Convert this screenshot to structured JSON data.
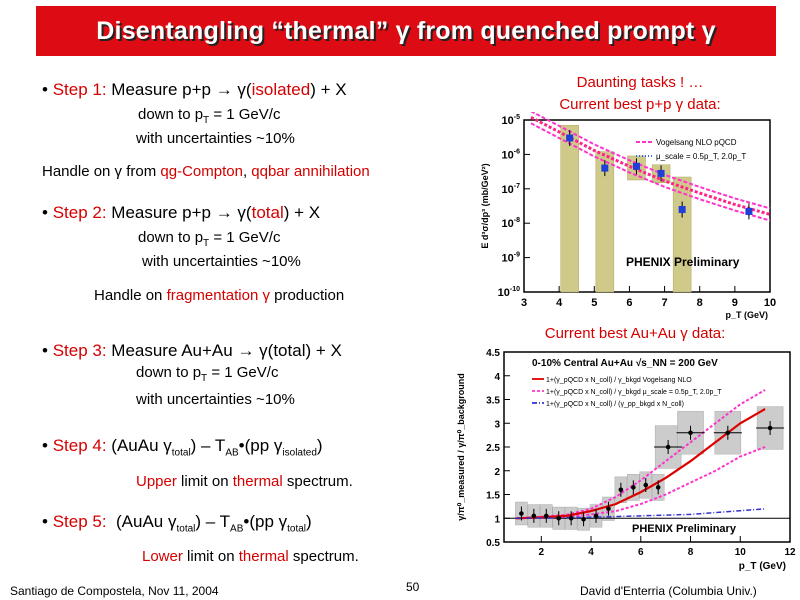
{
  "title": "Disentangling “thermal” γ from quenched prompt γ",
  "steps": [
    {
      "label": "Step 1:",
      "text_black": " Measure p+p → γ(",
      "text_red": "isolated",
      "text_end": ") + X",
      "line1": "down to p",
      "line1_sub": "T",
      "line1_end": " = 1 GeV/c",
      "line2": "with uncertainties ~10%"
    },
    {
      "label": "Step 2:",
      "text_black": " Measure p+p → γ(",
      "text_red": "total",
      "text_end": ") + X",
      "line1": "down to p",
      "line1_sub": "T",
      "line1_end": " = 1 GeV/c",
      "line2": "with uncertainties ~10%"
    },
    {
      "label": "Step 3:",
      "text_black": " Measure Au+Au → γ(total) + X",
      "line1": "down to p",
      "line1_sub": "T",
      "line1_end": " = 1 GeV/c",
      "line2": "with uncertainties ~10%"
    },
    {
      "label": "Step 4:",
      "formula_a": " (AuAu γ",
      "formula_a_sub": "total",
      "formula_b": ") – T",
      "formula_b_sub": "AB",
      "formula_c": "•(pp γ",
      "formula_c_sub": "isolated",
      "formula_d": ")",
      "note_red1": "Upper",
      "note_mid": " limit on ",
      "note_red2": "thermal",
      "note_end": " spectrum."
    },
    {
      "label": "Step 5:",
      "formula_a": "  (AuAu γ",
      "formula_a_sub": "total",
      "formula_b": ") – T",
      "formula_b_sub": "AB",
      "formula_c": "•(pp γ",
      "formula_c_sub": "total",
      "formula_d": ")",
      "note_red1": "Lower",
      "note_mid": " limit on ",
      "note_red2": "thermal",
      "note_end": " spectrum."
    }
  ],
  "handle1": {
    "a": "Handle on γ from ",
    "r1": "qg-Compton",
    "b": ", ",
    "r2": "qqbar annihilation"
  },
  "handle2": {
    "a": "Handle on ",
    "r1": "fragmentation γ",
    "b": " production"
  },
  "chart_heading_pp": {
    "line1": "Daunting tasks ! …",
    "line2": "Current best p+p  γ data:"
  },
  "chart_heading_auau": "Current best Au+Au γ data:",
  "footer": {
    "left": "Santiago de Compostela, Nov 11, 2004",
    "page": "50",
    "right": "David d'Enterria (Columbia Univ.)"
  },
  "chart_data": [
    {
      "type": "scatter",
      "title": "",
      "xlabel": "p_T (GeV)",
      "ylabel": "E d³σ/dp³ (mb/GeV²)",
      "yscale": "log",
      "xlim": [
        3,
        10
      ],
      "ylim": [
        1e-10,
        1e-05
      ],
      "xticks": [
        "3",
        "4",
        "5",
        "6",
        "7",
        "8",
        "9",
        "10"
      ],
      "yticks": [
        "10^-5",
        "10^-6",
        "10^-7",
        "10^-8",
        "10^-9",
        "10^-10"
      ],
      "legend": [
        {
          "name": "Vogelsang NLO pQCD",
          "color": "#ff33cc",
          "style": "dashed"
        },
        {
          "name": "μ_scale = 0.5p_T, 2.0p_T",
          "color": "#3366ff",
          "style": "dotted"
        }
      ],
      "label": "PHENIX Preliminary",
      "data": [
        {
          "x": 4.3,
          "y": 3e-06
        },
        {
          "x": 5.3,
          "y": 4e-07
        },
        {
          "x": 6.2,
          "y": 4.5e-07
        },
        {
          "x": 6.9,
          "y": 2.8e-07
        },
        {
          "x": 7.5,
          "y": 2.5e-08
        },
        {
          "x": 9.4,
          "y": 2.2e-08
        }
      ],
      "sys_bands": [
        {
          "x": 4.3,
          "lo": 1e-10,
          "hi": 7e-06
        },
        {
          "x": 5.3,
          "lo": 1e-10,
          "hi": 1.2e-06
        },
        {
          "x": 6.2,
          "lo": 1.8e-07,
          "hi": 9e-07
        },
        {
          "x": 6.9,
          "lo": 1.5e-07,
          "hi": 5e-07
        },
        {
          "x": 7.5,
          "lo": 1e-10,
          "hi": 2.2e-07
        }
      ],
      "curve": [
        [
          3.2,
          1.2e-05
        ],
        [
          4,
          4.5e-06
        ],
        [
          5,
          1.3e-06
        ],
        [
          6,
          4.5e-07
        ],
        [
          7,
          1.7e-07
        ],
        [
          8,
          7.5e-08
        ],
        [
          9,
          3.5e-08
        ],
        [
          10,
          1.8e-08
        ]
      ]
    },
    {
      "type": "scatter",
      "title": "0-10% Central  Au+Au  √s_NN = 200 GeV",
      "xlabel": "p_T (GeV)",
      "ylabel": "γ/π⁰_measured / γ/π⁰_background",
      "xlim": [
        0.5,
        12
      ],
      "ylim": [
        0.5,
        4.5
      ],
      "xticks": [
        "2",
        "4",
        "6",
        "8",
        "10",
        "12"
      ],
      "yticks": [
        "0.5",
        "1",
        "1.5",
        "2",
        "2.5",
        "3",
        "3.5",
        "4",
        "4.5"
      ],
      "legend": [
        {
          "name": "1+(γ_pQCD x N_coll) / γ_bkgd  Vogelsang NLO",
          "color": "#dd0000",
          "style": "solid"
        },
        {
          "name": "1+(γ_pQCD x N_coll) / γ_bkgd  μ_scale = 0.5p_T, 2.0p_T",
          "color": "#ff33cc",
          "style": "dashed"
        },
        {
          "name": "1+(γ_pQCD x N_coll) / (γ_pp_bkgd x N_coll)",
          "color": "#3333cc",
          "style": "dashdot"
        }
      ],
      "label": "PHENIX Preliminary",
      "data": [
        {
          "x": 1.2,
          "y": 1.1
        },
        {
          "x": 1.7,
          "y": 1.05
        },
        {
          "x": 2.2,
          "y": 1.05
        },
        {
          "x": 2.7,
          "y": 1.0
        },
        {
          "x": 3.2,
          "y": 1.0
        },
        {
          "x": 3.7,
          "y": 0.98
        },
        {
          "x": 4.2,
          "y": 1.05
        },
        {
          "x": 4.7,
          "y": 1.2
        },
        {
          "x": 5.2,
          "y": 1.6
        },
        {
          "x": 5.7,
          "y": 1.65
        },
        {
          "x": 6.2,
          "y": 1.7
        },
        {
          "x": 6.7,
          "y": 1.65
        },
        {
          "x": 7.1,
          "y": 2.5
        },
        {
          "x": 8.0,
          "y": 2.8
        },
        {
          "x": 9.5,
          "y": 2.8
        },
        {
          "x": 11.2,
          "y": 2.9
        }
      ],
      "curve_red": [
        [
          1,
          1.0
        ],
        [
          2,
          1.02
        ],
        [
          3,
          1.05
        ],
        [
          4,
          1.15
        ],
        [
          5,
          1.3
        ],
        [
          6,
          1.55
        ],
        [
          7,
          1.85
        ],
        [
          8,
          2.2
        ],
        [
          9,
          2.6
        ],
        [
          10,
          3.0
        ],
        [
          11,
          3.3
        ]
      ],
      "curve_upper": [
        [
          1,
          1.0
        ],
        [
          2,
          1.03
        ],
        [
          3,
          1.07
        ],
        [
          4,
          1.2
        ],
        [
          5,
          1.45
        ],
        [
          6,
          1.8
        ],
        [
          7,
          2.2
        ],
        [
          8,
          2.6
        ],
        [
          9,
          3.0
        ],
        [
          10,
          3.4
        ],
        [
          11,
          3.7
        ]
      ],
      "curve_lower": [
        [
          1,
          1.0
        ],
        [
          2,
          1.01
        ],
        [
          3,
          1.03
        ],
        [
          4,
          1.08
        ],
        [
          5,
          1.15
        ],
        [
          6,
          1.3
        ],
        [
          7,
          1.5
        ],
        [
          8,
          1.75
        ],
        [
          9,
          2.0
        ],
        [
          10,
          2.3
        ],
        [
          11,
          2.5
        ]
      ],
      "curve_blue": [
        [
          1,
          1.0
        ],
        [
          4,
          1.02
        ],
        [
          8,
          1.08
        ],
        [
          11,
          1.2
        ]
      ]
    }
  ]
}
